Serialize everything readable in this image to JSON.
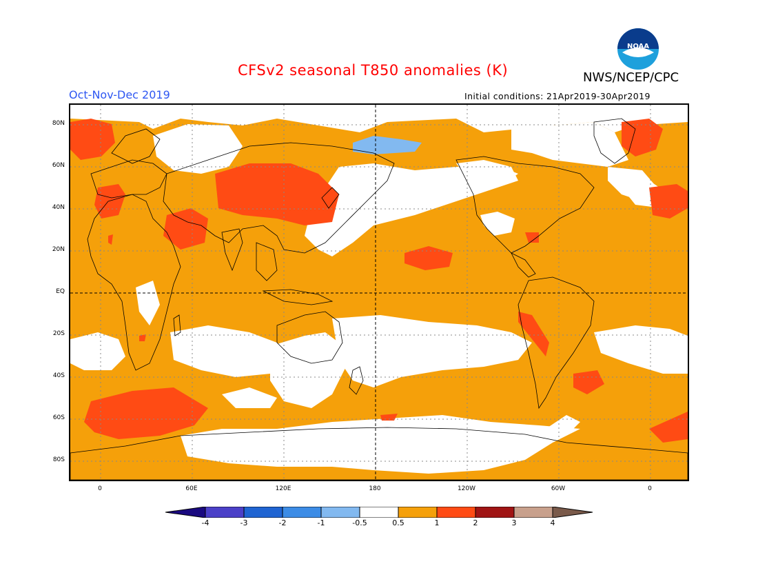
{
  "title": "CFSv2 seasonal T850 anomalies (K)",
  "agency": "NWS/NCEP/CPC",
  "logo_text": "NOAA",
  "season": "Oct-Nov-Dec 2019",
  "initial_conditions": "Initial conditions: 21Apr2019-30Apr2019",
  "lat_labels": [
    "80N",
    "60N",
    "40N",
    "20N",
    "EQ",
    "20S",
    "40S",
    "60S",
    "80S"
  ],
  "lon_labels": [
    "0",
    "60E",
    "120E",
    "180",
    "120W",
    "60W",
    "0"
  ],
  "colorbar": {
    "ticks": [
      "-4",
      "-3",
      "-2",
      "-1",
      "-0.5",
      "0.5",
      "1",
      "2",
      "3",
      "4"
    ],
    "colors": [
      "#1a0a80",
      "#4b40c8",
      "#1f64d2",
      "#3c8ce6",
      "#82b9f0",
      "#ffffff",
      "#f5a00a",
      "#ff4b14",
      "#a01414",
      "#c8a08c",
      "#7a5a4a"
    ]
  },
  "colors": {
    "orange": "#f5a00a",
    "red": "#ff4b14",
    "lightblue": "#82b9f0",
    "title_red": "#ff0000",
    "season_blue": "#2e57f2"
  }
}
